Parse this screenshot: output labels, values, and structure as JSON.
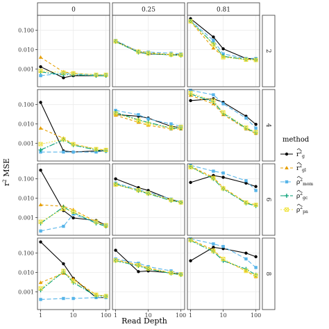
{
  "chart_data": {
    "type": "line",
    "xlabel": "Read Depth",
    "ylabel_main": "r",
    "ylabel_sup": "2",
    "ylabel_rest": " MSE",
    "x_scale": "log10",
    "y_scale": "log10",
    "xlim": [
      0.8,
      130
    ],
    "ylim": [
      0.00012,
      0.6
    ],
    "x_ticks": [
      1,
      10,
      100
    ],
    "x_tick_labels": [
      "1",
      "10",
      "100"
    ],
    "y_ticks": [
      0.001,
      0.01,
      0.1
    ],
    "y_tick_labels": [
      "0.001",
      "0.010",
      "0.100"
    ],
    "grid": true,
    "legend_position": "right",
    "col_facets": [
      "0",
      "0.25",
      "0.81"
    ],
    "row_facets": [
      "2",
      "4",
      "6",
      "8"
    ],
    "legend": {
      "title": "method",
      "entries": [
        {
          "key": "g",
          "hat": "r",
          "sup": "2",
          "sub": "g",
          "color": "#000000",
          "marker": "circle",
          "dash": "solid"
        },
        {
          "key": "gl",
          "hat": "r",
          "sup": "2",
          "sub": "gl",
          "color": "#e69f00",
          "marker": "triangle",
          "dash": "4,3"
        },
        {
          "key": "mom",
          "hat": "ρ",
          "sup": "2",
          "sub": "mom",
          "color": "#56b4e9",
          "marker": "square",
          "dash": "6,3"
        },
        {
          "key": "gc",
          "hat": "ρ",
          "sup": "2",
          "sub": "gc",
          "color": "#009e73",
          "marker": "plus",
          "dash": "8,2,2,2"
        },
        {
          "key": "pn",
          "hat": "ρ",
          "sup": "2",
          "sub": "pn",
          "color": "#f0e442",
          "marker": "boxx",
          "dash": "2,2"
        }
      ]
    },
    "x": [
      1,
      5,
      10,
      50,
      100
    ],
    "panels": [
      [
        {
          "g": [
            0.0013,
            0.00035,
            0.00045,
            0.00045,
            0.00045
          ],
          "gl": [
            0.004,
            0.0007,
            0.0006,
            0.0005,
            0.0005
          ],
          "mom": [
            0.00045,
            0.0006,
            0.00055,
            0.0005,
            0.0005
          ],
          "gc": [
            0.0007,
            0.0005,
            0.0005,
            0.00045,
            0.00045
          ],
          "pn": [
            0.0008,
            0.00065,
            0.0006,
            0.0005,
            0.0005
          ]
        },
        {
          "g": [
            0.028,
            0.0075,
            0.006,
            0.0055,
            0.0055
          ],
          "gl": [
            0.025,
            0.0085,
            0.007,
            0.0055,
            0.0052
          ],
          "mom": [
            0.03,
            0.008,
            0.0075,
            0.0065,
            0.006
          ],
          "gc": [
            0.026,
            0.0072,
            0.0062,
            0.0053,
            0.005
          ],
          "pn": [
            0.027,
            0.0078,
            0.0065,
            0.0055,
            0.0053
          ]
        },
        {
          "g": [
            0.4,
            0.045,
            0.011,
            0.0035,
            0.0033
          ],
          "gl": [
            0.28,
            0.012,
            0.0045,
            0.0032,
            0.003
          ],
          "mom": [
            0.32,
            0.03,
            0.006,
            0.0035,
            0.0035
          ],
          "gc": [
            0.3,
            0.02,
            0.0045,
            0.0031,
            0.003
          ],
          "pn": [
            0.29,
            0.018,
            0.004,
            0.003,
            0.0029
          ]
        }
      ],
      [
        {
          "g": [
            0.13,
            0.0004,
            0.00035,
            0.0004,
            0.0004
          ],
          "gl": [
            0.006,
            0.0018,
            0.0009,
            0.0005,
            0.00045
          ],
          "mom": [
            0.00035,
            0.00035,
            0.00035,
            0.00035,
            0.0004
          ],
          "gc": [
            0.00045,
            0.0015,
            0.0008,
            0.00045,
            0.0004
          ],
          "pn": [
            0.0009,
            0.0016,
            0.0009,
            0.0005,
            0.00045
          ]
        },
        {
          "g": [
            0.03,
            0.025,
            0.02,
            0.0075,
            0.0065
          ],
          "gl": [
            0.028,
            0.012,
            0.0085,
            0.0055,
            0.0055
          ],
          "mom": [
            0.05,
            0.03,
            0.018,
            0.01,
            0.0075
          ],
          "gc": [
            0.04,
            0.016,
            0.012,
            0.006,
            0.006
          ],
          "pn": [
            0.035,
            0.015,
            0.01,
            0.0065,
            0.007
          ]
        },
        {
          "g": [
            0.16,
            0.2,
            0.13,
            0.025,
            0.0095
          ],
          "gl": [
            0.3,
            0.11,
            0.03,
            0.0055,
            0.0032
          ],
          "mom": [
            0.55,
            0.32,
            0.11,
            0.02,
            0.006
          ],
          "gc": [
            0.35,
            0.14,
            0.035,
            0.006,
            0.0035
          ],
          "pn": [
            0.4,
            0.16,
            0.04,
            0.0065,
            0.0038
          ]
        }
      ],
      [
        {
          "g": [
            0.28,
            0.0023,
            0.00095,
            0.0007,
            0.0004
          ],
          "gl": [
            0.0045,
            0.0038,
            0.0025,
            0.0006,
            0.00035
          ],
          "mom": [
            0.0002,
            0.00035,
            0.0015,
            0.00055,
            0.0004
          ],
          "gc": [
            0.0005,
            0.0035,
            0.0018,
            0.0005,
            0.00035
          ],
          "pn": [
            0.0006,
            0.0028,
            0.002,
            0.0006,
            0.0004
          ]
        },
        {
          "g": [
            0.1,
            0.035,
            0.025,
            0.0085,
            0.0065
          ],
          "gl": [
            0.05,
            0.025,
            0.018,
            0.008,
            0.006
          ],
          "mom": [
            0.06,
            0.028,
            0.02,
            0.009,
            0.0065
          ],
          "gc": [
            0.055,
            0.024,
            0.017,
            0.0075,
            0.006
          ],
          "pn": [
            0.05,
            0.026,
            0.018,
            0.008,
            0.006
          ]
        },
        {
          "g": [
            0.065,
            0.15,
            0.12,
            0.06,
            0.04
          ],
          "gl": [
            0.45,
            0.12,
            0.035,
            0.006,
            0.0045
          ],
          "mom": [
            0.5,
            0.25,
            0.2,
            0.08,
            0.025
          ],
          "gc": [
            0.42,
            0.1,
            0.03,
            0.0055,
            0.004
          ],
          "pn": [
            0.4,
            0.11,
            0.032,
            0.006,
            0.0045
          ]
        }
      ],
      [
        {
          "g": [
            0.38,
            0.028,
            0.005,
            0.0005,
            0.0005
          ],
          "gl": [
            0.003,
            0.009,
            0.0045,
            0.0007,
            0.0006
          ],
          "mom": [
            0.0004,
            0.00045,
            0.00045,
            0.0005,
            0.0005
          ],
          "gc": [
            0.0012,
            0.011,
            0.003,
            0.0006,
            0.0006
          ],
          "pn": [
            0.0015,
            0.012,
            0.0035,
            0.0007,
            0.0006
          ]
        },
        {
          "g": [
            0.14,
            0.011,
            0.012,
            0.0095,
            0.0085
          ],
          "gl": [
            0.045,
            0.025,
            0.017,
            0.0095,
            0.008
          ],
          "mom": [
            0.05,
            0.03,
            0.02,
            0.012,
            0.0085
          ],
          "gc": [
            0.04,
            0.022,
            0.015,
            0.009,
            0.0075
          ],
          "pn": [
            0.042,
            0.024,
            0.016,
            0.0095,
            0.008
          ]
        },
        {
          "g": [
            0.04,
            0.2,
            0.17,
            0.1,
            0.065
          ],
          "gl": [
            0.5,
            0.15,
            0.045,
            0.012,
            0.006
          ],
          "mom": [
            0.55,
            0.3,
            0.22,
            0.05,
            0.018
          ],
          "gc": [
            0.45,
            0.12,
            0.04,
            0.015,
            0.0075
          ],
          "pn": [
            0.48,
            0.13,
            0.05,
            0.012,
            0.007
          ]
        }
      ]
    ]
  }
}
